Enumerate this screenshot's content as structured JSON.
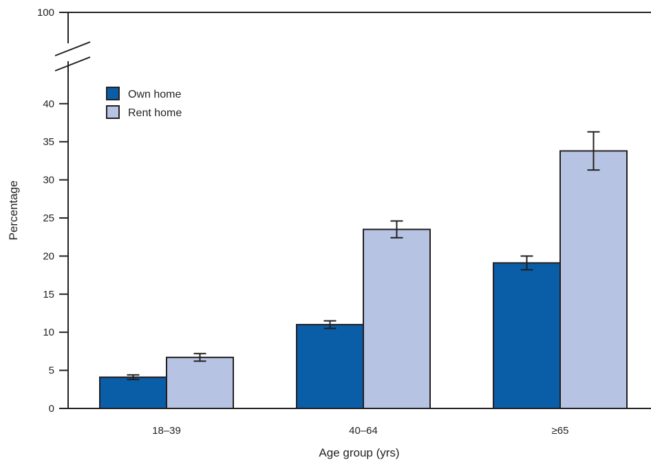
{
  "chart_data": {
    "type": "bar",
    "title": "",
    "xlabel": "Age group (yrs)",
    "ylabel": "Percentage",
    "categories": [
      "18–39",
      "40–64",
      "≥65"
    ],
    "series": [
      {
        "name": "Own home",
        "color": "#0a5ea8",
        "values": [
          4.1,
          11.0,
          19.1
        ],
        "ci_low": [
          3.8,
          10.5,
          18.2
        ],
        "ci_high": [
          4.4,
          11.5,
          20.0
        ]
      },
      {
        "name": "Rent home",
        "color": "#b6c3e2",
        "values": [
          6.7,
          23.5,
          33.8
        ],
        "ci_low": [
          6.2,
          22.4,
          31.3
        ],
        "ci_high": [
          7.2,
          24.6,
          36.3
        ]
      }
    ],
    "yticks": [
      "0",
      "5",
      "10",
      "15",
      "20",
      "25",
      "30",
      "35",
      "40",
      "100"
    ],
    "ylim": [
      0,
      40
    ],
    "y_axis_break": {
      "from": 40,
      "to": 100
    },
    "grid": false,
    "legend_position": "top-left"
  }
}
